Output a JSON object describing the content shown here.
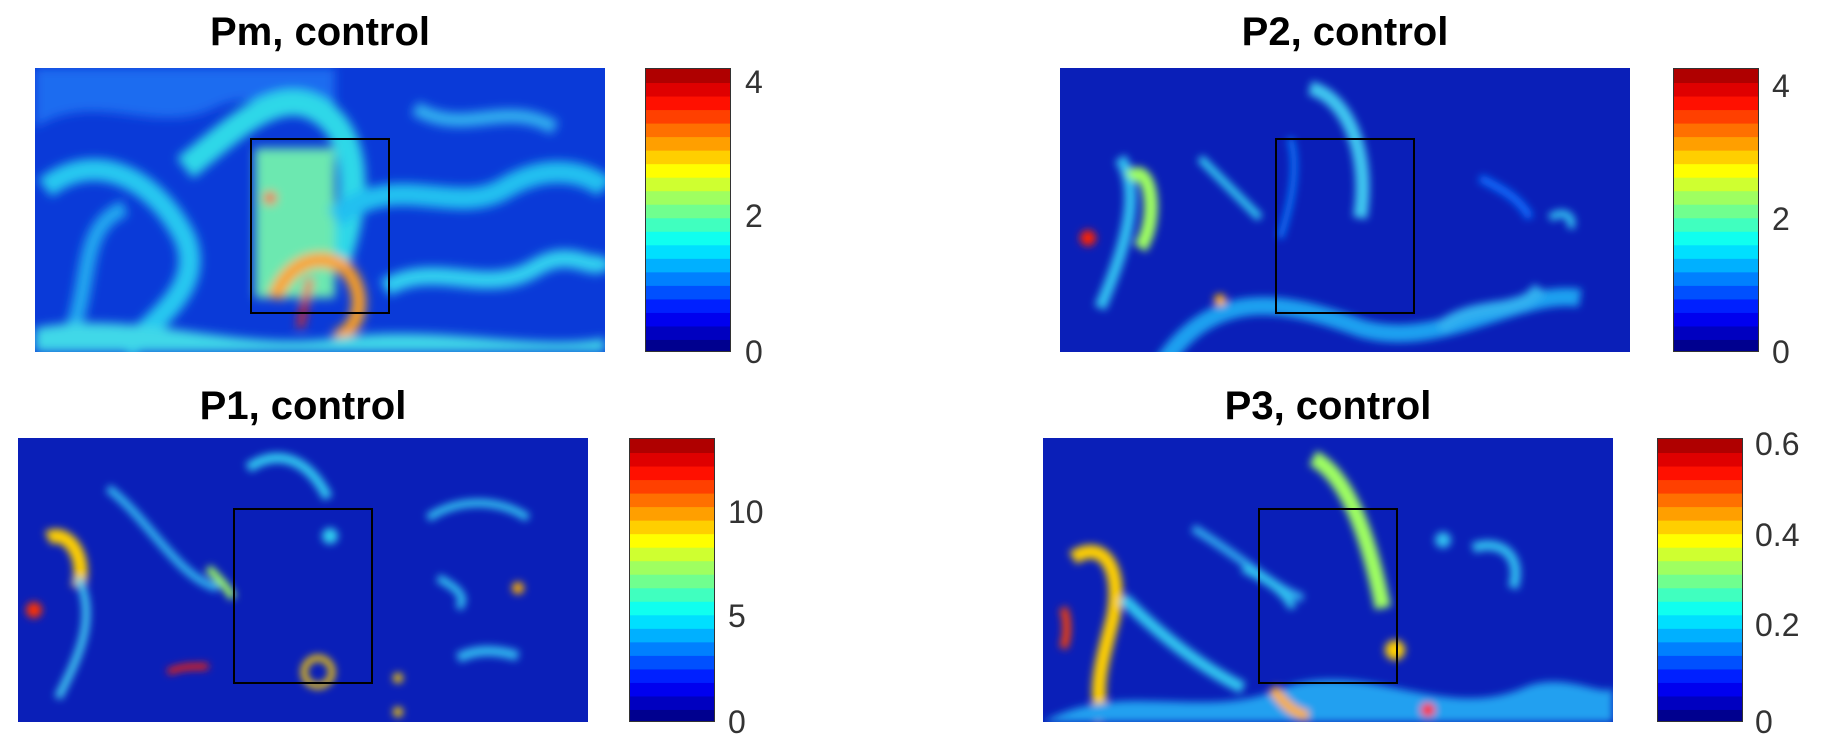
{
  "colormap": [
    "#00008f",
    "#0000c0",
    "#0000ef",
    "#0020ff",
    "#0050ff",
    "#0080ff",
    "#00b0ff",
    "#00dfff",
    "#10ffef",
    "#40ffbf",
    "#70ff8f",
    "#9fff60",
    "#cfff30",
    "#ffff00",
    "#ffcf00",
    "#ff9f00",
    "#ff7000",
    "#ff4000",
    "#ff1000",
    "#df0000",
    "#af0000"
  ],
  "chart_data": [
    {
      "type": "heatmap",
      "title": "Pm, control",
      "colorbar": {
        "range": [
          0,
          4.2
        ],
        "ticks": [
          "0",
          "2",
          "4"
        ],
        "tick_values": [
          0,
          2,
          4
        ]
      },
      "rectangle": "black outline"
    },
    {
      "type": "heatmap",
      "title": "P2, control",
      "colorbar": {
        "range": [
          0,
          4.3
        ],
        "ticks": [
          "0",
          "2",
          "4"
        ],
        "tick_values": [
          0,
          2,
          4
        ]
      },
      "rectangle": "black outline"
    },
    {
      "type": "heatmap",
      "title": "P1, control",
      "colorbar": {
        "range": [
          0,
          13.5
        ],
        "ticks": [
          "0",
          "5",
          "10"
        ],
        "tick_values": [
          0,
          5,
          10
        ]
      },
      "rectangle": "black outline"
    },
    {
      "type": "heatmap",
      "title": "P3, control",
      "colorbar": {
        "range": [
          0,
          0.63
        ],
        "ticks": [
          "0",
          "0.2",
          "0.4",
          "0.6"
        ],
        "tick_values": [
          0,
          0.2,
          0.4,
          0.6
        ]
      },
      "rectangle": "black outline"
    }
  ]
}
